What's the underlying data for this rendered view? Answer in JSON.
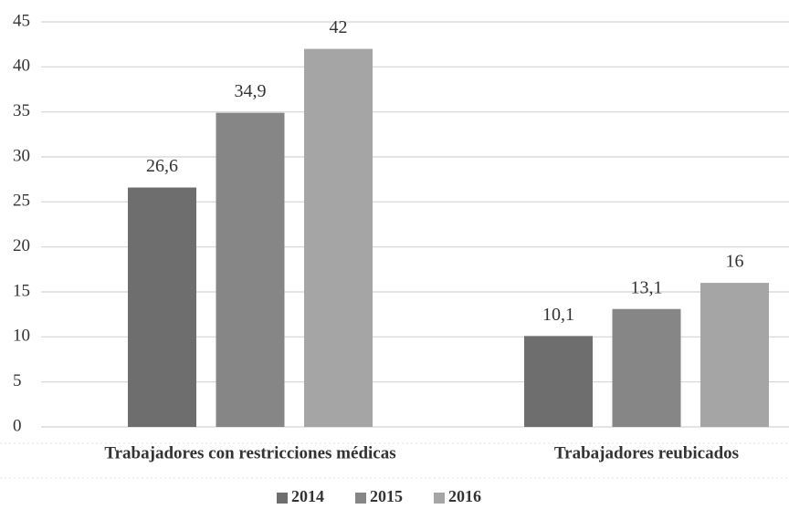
{
  "chart_data": {
    "type": "bar",
    "categories": [
      "Trabajadores con restricciones médicas",
      "Trabajadores reubicados"
    ],
    "series": [
      {
        "name": "2014",
        "color": "#6e6e6e",
        "values": [
          26.6,
          10.1
        ],
        "value_labels": [
          "26,6",
          "10,1"
        ]
      },
      {
        "name": "2015",
        "color": "#868686",
        "values": [
          34.9,
          13.1
        ],
        "value_labels": [
          "34,9",
          "13,1"
        ]
      },
      {
        "name": "2016",
        "color": "#a5a5a5",
        "values": [
          42,
          16
        ],
        "value_labels": [
          "42",
          "16"
        ]
      }
    ],
    "ylim": [
      0,
      45
    ],
    "yticks": [
      0,
      5,
      10,
      15,
      20,
      25,
      30,
      35,
      40,
      45
    ],
    "grid": true,
    "legend": "bottom"
  }
}
